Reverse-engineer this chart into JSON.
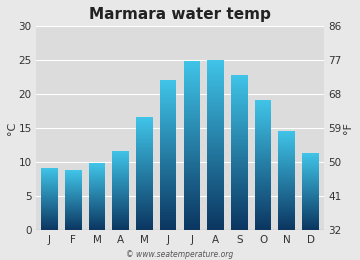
{
  "title": "Marmara water temp",
  "months": [
    "J",
    "F",
    "M",
    "A",
    "M",
    "J",
    "J",
    "A",
    "S",
    "O",
    "N",
    "D"
  ],
  "values_c": [
    9.2,
    8.8,
    9.8,
    11.7,
    16.6,
    22.0,
    24.9,
    25.0,
    22.8,
    19.1,
    14.6,
    11.3
  ],
  "ylim_c": [
    0,
    30
  ],
  "yticks_c": [
    0,
    5,
    10,
    15,
    20,
    25,
    30
  ],
  "yticks_f": [
    32,
    41,
    50,
    59,
    68,
    77,
    86
  ],
  "ylabel_left": "°C",
  "ylabel_right": "°F",
  "bar_color_top": "#40c4e8",
  "bar_color_bottom": "#0a3560",
  "background_color": "#e8e8e8",
  "plot_bg_color": "#dcdcdc",
  "grid_color": "#ffffff",
  "title_fontsize": 11,
  "axis_fontsize": 8,
  "tick_fontsize": 7.5,
  "watermark": "© www.seatemperature.org",
  "bar_width": 0.7
}
